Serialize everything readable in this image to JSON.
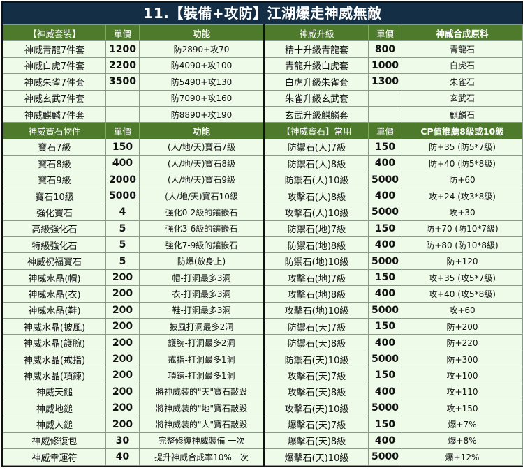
{
  "title": "11.【裝備+攻防】江湖爆走神威無敵",
  "colors": {
    "title_bg": "#142f45",
    "header_bg": "#4d7a2b",
    "row_bg": "#eefbe9"
  },
  "section1": {
    "left_header": [
      "【神威套裝】",
      "單價",
      "功能"
    ],
    "right_header": [
      "神威升級",
      "單價",
      "神威合成原料"
    ],
    "left_rows": [
      [
        "神威青龍7件套",
        "1200",
        "防2890+攻70"
      ],
      [
        "神威白虎7件套",
        "2200",
        "防4090+攻100"
      ],
      [
        "神威朱雀7件套",
        "3500",
        "防5490+攻130"
      ],
      [
        "神威玄武7件套",
        "",
        "防7090+攻160"
      ],
      [
        "神威麒麟7件套",
        "",
        "防8890+攻190"
      ]
    ],
    "right_rows": [
      [
        "精十升級青龍套",
        "800",
        "青龍石"
      ],
      [
        "青龍升級白虎套",
        "1000",
        "白虎石"
      ],
      [
        "白虎升級朱雀套",
        "1300",
        "朱雀石"
      ],
      [
        "朱雀升級玄武套",
        "",
        "玄武石"
      ],
      [
        "玄武升級麒麟套",
        "",
        "麒麟石"
      ]
    ]
  },
  "section2": {
    "left_header": [
      "神威寶石物件",
      "單價",
      "功能"
    ],
    "right_header": [
      "【神威寶石】常用",
      "單價",
      "CP值推薦8級或10級"
    ],
    "left_rows": [
      [
        "寶石7級",
        "150",
        "(人/地/天)寶石7級"
      ],
      [
        "寶石8級",
        "400",
        "(人/地/天)寶石8級"
      ],
      [
        "寶石9級",
        "2000",
        "(人/地/天)寶石9級"
      ],
      [
        "寶石10級",
        "5000",
        "(人/地/天)寶石10級"
      ],
      [
        "強化寶石",
        "4",
        "強化0-2級的鑲嵌石"
      ],
      [
        "高級強化石",
        "5",
        "強化3-6級的鑲嵌石"
      ],
      [
        "特級強化石",
        "5",
        "強化7-9級的鑲嵌石"
      ],
      [
        "神威祝福寶石",
        "5",
        "防爆(放身上)"
      ],
      [
        "神威水晶(帽)",
        "200",
        "帽-打洞最多3洞"
      ],
      [
        "神威水晶(衣)",
        "200",
        "衣-打洞最多3洞"
      ],
      [
        "神威水晶(鞋)",
        "200",
        "鞋-打洞最多3洞"
      ],
      [
        "神威水晶(披風)",
        "200",
        "披風打洞最多2洞"
      ],
      [
        "神威水晶(護腕)",
        "200",
        "護腕-打洞最多2洞"
      ],
      [
        "神威水晶(戒指)",
        "200",
        "戒指-打洞最多1洞"
      ],
      [
        "神威水晶(項鍊)",
        "200",
        "項鍊-打洞最多1洞"
      ],
      [
        "神威天鎚",
        "200",
        "將神威裝的\"天\"寶石敲毀"
      ],
      [
        "神威地鎚",
        "200",
        "將神威裝的\"地\"寶石敲毀"
      ],
      [
        "神威人鎚",
        "200",
        "將神威裝的\"人\"寶石敲毀"
      ],
      [
        "神威修復包",
        "30",
        "完整修復神威裝備 一次"
      ],
      [
        "神威幸運符",
        "40",
        "提升神威合成率10%一次"
      ]
    ],
    "right_rows": [
      [
        "防禦石(人)7級",
        "150",
        "防+35 (防5*7級)"
      ],
      [
        "防禦石(人)8級",
        "400",
        "防+40 (防5*8級)"
      ],
      [
        "防禦石(人)10級",
        "5000",
        "防+60"
      ],
      [
        "攻擊石(人)8級",
        "400",
        "攻+24 (攻3*8級)"
      ],
      [
        "攻擊石(人)10級",
        "5000",
        "攻+30"
      ],
      [
        "防禦石(地)7級",
        "150",
        "防+70 (防10*7級)"
      ],
      [
        "防禦石(地)8級",
        "400",
        "防+80 (防10*8級)"
      ],
      [
        "防禦石(地)10級",
        "5000",
        "防+120"
      ],
      [
        "攻擊石(地)7級",
        "150",
        "攻+35 (攻5*7級)"
      ],
      [
        "攻擊石(地)8級",
        "400",
        "攻+40 (攻5*8級)"
      ],
      [
        "攻擊石(地)10級",
        "5000",
        "攻+60"
      ],
      [
        "防禦石(天)7級",
        "150",
        "防+200"
      ],
      [
        "防禦石(天)8級",
        "400",
        "防+220"
      ],
      [
        "防禦石(天)10級",
        "5000",
        "防+300"
      ],
      [
        "攻擊石(天)7級",
        "150",
        "攻+100"
      ],
      [
        "攻擊石(天)8級",
        "400",
        "攻+110"
      ],
      [
        "攻擊石(天)10級",
        "5000",
        "攻+150"
      ],
      [
        "爆擊石(天)7級",
        "150",
        "爆+7%"
      ],
      [
        "爆擊石(天)8級",
        "400",
        "爆+8%"
      ],
      [
        "爆擊石(天)10級",
        "5000",
        "爆+12%"
      ]
    ]
  }
}
